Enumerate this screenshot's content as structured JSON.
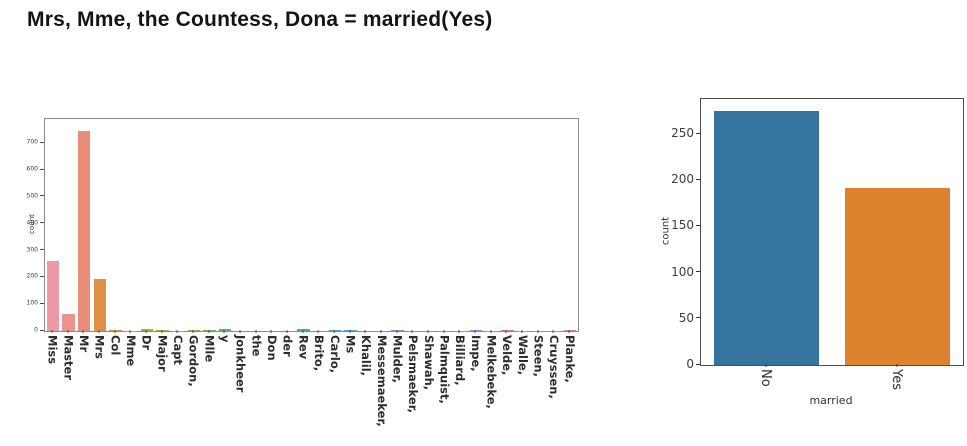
{
  "title": {
    "text": "Mrs, Mme, the Countess, Dona = married(Yes)"
  },
  "colors": {
    "background": "#ffffff",
    "left_spine": "#8a8a8a",
    "right_spine": "#4f4f4f",
    "no_bar": "#34749e",
    "yes_bar": "#de832d"
  },
  "chart_data": [
    {
      "name": "title-count-chart",
      "type": "bar",
      "title": "",
      "xlabel": "",
      "ylabel": "count",
      "ylim": [
        0,
        790
      ],
      "yticks": [
        0,
        100,
        200,
        300,
        400,
        500,
        600,
        700
      ],
      "grid": false,
      "legend_position": "none",
      "categories": [
        "Miss",
        "Master",
        "Mr",
        "Mrs",
        "Col",
        "Mme",
        "Dr",
        "Major",
        "Capt",
        "Gordon,",
        "Mlle",
        "y",
        "Jonkheer",
        "the",
        "Don",
        "der",
        "Rev",
        "Brito,",
        "Carlo,",
        "Ms",
        "Khalil,",
        "Messemaeker,",
        "Mulder,",
        "Pelsmaeker,",
        "Shawah,",
        "Palmquist,",
        "Billiard,",
        "Impe,",
        "Melkebeke,",
        "Velde,",
        "Walle,",
        "Steen,",
        "Cruyssen,",
        "Planke,"
      ],
      "values": [
        260,
        62,
        745,
        195,
        4,
        1,
        8,
        2,
        1,
        2,
        2,
        6,
        1,
        1,
        1,
        1,
        8,
        1,
        2,
        2,
        1,
        1,
        2,
        1,
        1,
        1,
        1,
        3,
        1,
        2,
        1,
        1,
        1,
        4
      ],
      "bar_colors": [
        "#EC9AA6",
        "#EA9390",
        "#E88E78",
        "#DE9146",
        "#D29B3D",
        "#C6A33A",
        "#BAA83A",
        "#ABAC3B",
        "#9AB13E",
        "#84B446",
        "#6FB64E",
        "#5DB75A",
        "#52B663",
        "#4BB472",
        "#45B383",
        "#41B293",
        "#3EB1A1",
        "#3CAFAF",
        "#3FABBC",
        "#49A5C8",
        "#58A0D2",
        "#6A99DA",
        "#7D92DE",
        "#8E8BE0",
        "#9C85DF",
        "#A981DC",
        "#B47DD8",
        "#BE79D3",
        "#C877CD",
        "#D075C5",
        "#D674BB",
        "#DB74B0",
        "#DF75A4",
        "#E27798"
      ]
    },
    {
      "name": "married-count-chart",
      "type": "bar",
      "title": "",
      "xlabel": "married",
      "ylabel": "count",
      "ylim": [
        0,
        288
      ],
      "yticks": [
        0,
        50,
        100,
        150,
        200,
        250
      ],
      "grid": false,
      "legend_position": "none",
      "categories": [
        "No",
        "Yes"
      ],
      "values": [
        275,
        192
      ],
      "bar_colors": [
        "#34749e",
        "#de832d"
      ]
    }
  ]
}
